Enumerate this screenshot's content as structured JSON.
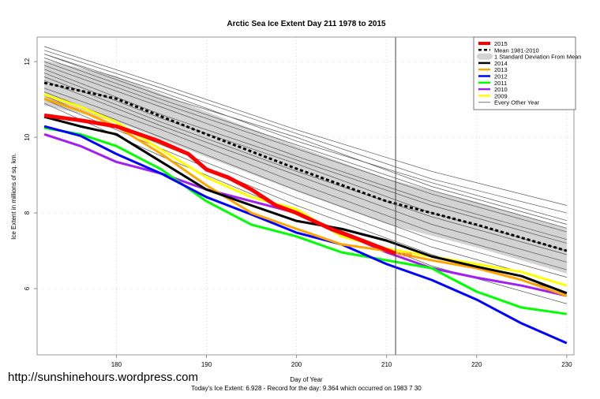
{
  "watermark": "http://sunshinehours.wordpress.com",
  "chart_data": {
    "type": "line",
    "title": "Arctic Sea Ice Extent Day 211 1978 to 2015",
    "xlabel": "Day of Year",
    "ylabel": "Ice Extent in millions of sq. km.",
    "subtitle": "Today's Ice Extent: 6.928  - Record for the day: 9.364 which occurred on 1983 7 30",
    "xlim": [
      171.2,
      230.8
    ],
    "ylim": [
      4.25,
      12.65
    ],
    "xticks": [
      180,
      190,
      200,
      210,
      220,
      230
    ],
    "yticks": [
      6,
      8,
      10,
      12
    ],
    "grid": true,
    "legend_position": "top-right",
    "current_day": 211,
    "current_value_label": "6.928",
    "mean": {
      "name": "Mean 1981-2010",
      "color": "#000000",
      "x": [
        172,
        180,
        190,
        200,
        210,
        220,
        230
      ],
      "y": [
        11.44,
        11.02,
        10.08,
        9.17,
        8.31,
        7.69,
        7.0
      ]
    },
    "std_band": {
      "name": "1 Standard Deviation From Mean",
      "color": "#d3d3d3",
      "sd": 0.6
    },
    "series": [
      {
        "name": "2015",
        "color": "#ff0000",
        "width": 5,
        "x": [
          172,
          176,
          180,
          184.5,
          188,
          190,
          192.4,
          195,
          197.7,
          200,
          203.8,
          207.3,
          211
        ],
        "y": [
          10.58,
          10.45,
          10.29,
          9.92,
          9.56,
          9.15,
          8.94,
          8.62,
          8.2,
          8.0,
          7.58,
          7.27,
          6.93
        ]
      },
      {
        "name": "2014",
        "color": "#000000",
        "width": 3,
        "x": [
          172,
          176,
          180,
          185,
          190,
          195,
          200,
          205,
          210,
          215,
          220,
          225,
          230
        ],
        "y": [
          10.54,
          10.29,
          10.08,
          9.35,
          8.62,
          8.2,
          7.79,
          7.58,
          7.27,
          6.85,
          6.58,
          6.33,
          5.88
        ]
      },
      {
        "name": "2013",
        "color": "#ffa500",
        "width": 3,
        "x": [
          172,
          176,
          180,
          185,
          190,
          195,
          200,
          205,
          210,
          215,
          220,
          225,
          230
        ],
        "y": [
          11.02,
          10.7,
          10.29,
          9.56,
          8.73,
          8.0,
          7.58,
          7.17,
          7.0,
          6.75,
          6.54,
          6.23,
          5.81
        ]
      },
      {
        "name": "2012",
        "color": "#0000ff",
        "width": 3,
        "x": [
          172,
          176,
          180,
          185,
          190,
          195,
          200,
          205,
          210,
          215,
          220,
          225,
          230
        ],
        "y": [
          10.29,
          10.04,
          9.56,
          9.04,
          8.42,
          7.96,
          7.48,
          7.17,
          6.65,
          6.23,
          5.71,
          5.08,
          4.56
        ]
      },
      {
        "name": "2011",
        "color": "#00ff00",
        "width": 3,
        "x": [
          172,
          176,
          180,
          185,
          190,
          195,
          200,
          205,
          210,
          215,
          220,
          225,
          230
        ],
        "y": [
          10.25,
          10.08,
          9.77,
          9.15,
          8.31,
          7.69,
          7.38,
          6.96,
          6.75,
          6.54,
          5.92,
          5.5,
          5.33
        ]
      },
      {
        "name": "2010",
        "color": "#a020f0",
        "width": 3,
        "x": [
          172,
          176,
          180,
          185,
          190,
          195,
          200,
          205,
          210,
          215,
          220,
          225,
          230
        ],
        "y": [
          10.08,
          9.77,
          9.35,
          9.04,
          8.62,
          8.31,
          8.0,
          7.48,
          6.96,
          6.54,
          6.29,
          6.08,
          5.81
        ]
      },
      {
        "name": "2009",
        "color": "#ffff00",
        "width": 3,
        "x": [
          172,
          176,
          180,
          185,
          190,
          195,
          200,
          205,
          210,
          215,
          220,
          225,
          230
        ],
        "y": [
          11.13,
          10.81,
          10.4,
          9.67,
          8.94,
          8.42,
          8.1,
          7.38,
          7.06,
          6.85,
          6.65,
          6.44,
          6.08
        ]
      }
    ],
    "other_years": {
      "name": "Every Other Year",
      "color": "#555555",
      "x": [
        172,
        185,
        200,
        215,
        230
      ],
      "lines": [
        [
          12.4,
          11.4,
          10.2,
          9.1,
          8.2
        ],
        [
          12.3,
          11.3,
          10.1,
          8.9,
          8.0
        ],
        [
          12.2,
          11.2,
          9.9,
          8.8,
          7.8
        ],
        [
          12.1,
          11.0,
          9.8,
          8.6,
          7.6
        ],
        [
          12.0,
          10.9,
          9.7,
          8.5,
          7.5
        ],
        [
          11.9,
          10.8,
          9.5,
          8.3,
          7.3
        ],
        [
          11.8,
          10.6,
          9.4,
          8.2,
          7.2
        ],
        [
          11.7,
          10.5,
          9.3,
          8.0,
          7.0
        ],
        [
          11.6,
          10.4,
          9.1,
          7.9,
          6.9
        ],
        [
          11.5,
          10.3,
          9.0,
          7.7,
          6.7
        ],
        [
          11.3,
          10.2,
          8.8,
          7.5,
          6.5
        ],
        [
          11.2,
          10.0,
          8.6,
          7.3,
          6.3
        ],
        [
          11.1,
          9.8,
          8.4,
          7.1,
          6.1
        ],
        [
          11.0,
          9.7,
          8.2,
          6.9,
          5.9
        ],
        [
          10.9,
          9.5,
          8.0,
          6.6,
          5.6
        ],
        [
          12.2,
          11.1,
          10.0,
          8.7,
          7.7
        ]
      ]
    }
  }
}
